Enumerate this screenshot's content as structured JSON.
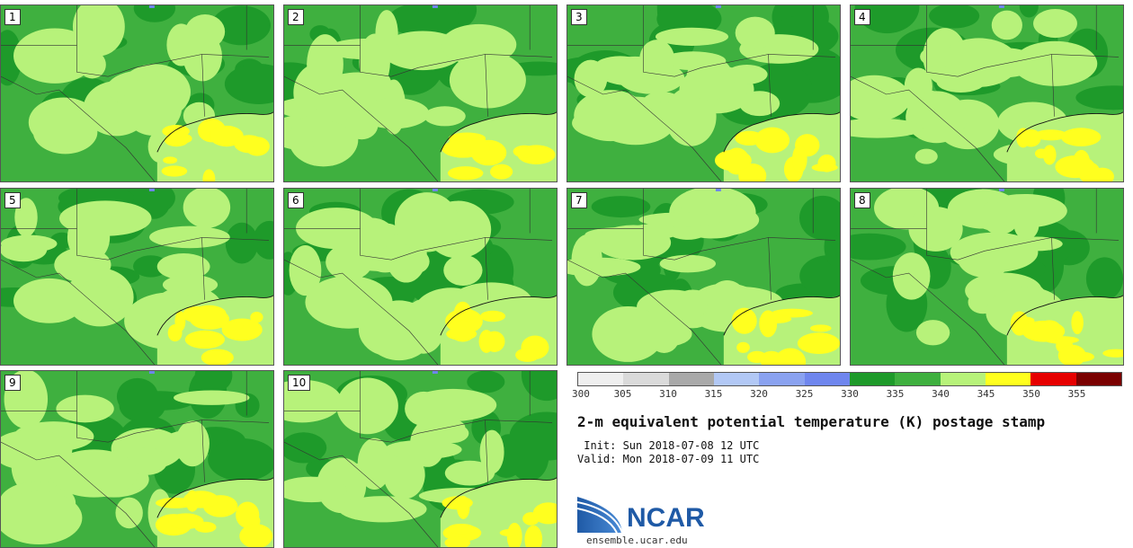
{
  "panels": [
    {
      "label": "1"
    },
    {
      "label": "2"
    },
    {
      "label": "3"
    },
    {
      "label": "4"
    },
    {
      "label": "5"
    },
    {
      "label": "6"
    },
    {
      "label": "7"
    },
    {
      "label": "8"
    },
    {
      "label": "9"
    },
    {
      "label": "10"
    }
  ],
  "chart_data": {
    "type": "heatmap",
    "title": "2-m equivalent potential temperature (K) postage stamp",
    "colorbar": {
      "ticks": [
        "300",
        "305",
        "310",
        "315",
        "320",
        "325",
        "330",
        "335",
        "340",
        "345",
        "350",
        "355"
      ],
      "colors": [
        "#efefef",
        "#dadada",
        "#a9a9a9",
        "#b2c8f5",
        "#8aa2f0",
        "#6f86ee",
        "#1e9a2a",
        "#3fb03f",
        "#b7f27a",
        "#ffff1f",
        "#e60000",
        "#7a0000"
      ]
    },
    "colors": {
      "dark_green": "#1e9a2a",
      "mid_green": "#3fb03f",
      "light_green": "#b7f27a",
      "yellow": "#ffff1f",
      "water_blue": "#6f86ee"
    }
  },
  "meta": {
    "init": " Init: Sun 2018-07-08 12 UTC",
    "valid": "Valid: Mon 2018-07-09 11 UTC"
  },
  "logo": {
    "text": "NCAR",
    "site": "ensemble.ucar.edu"
  }
}
